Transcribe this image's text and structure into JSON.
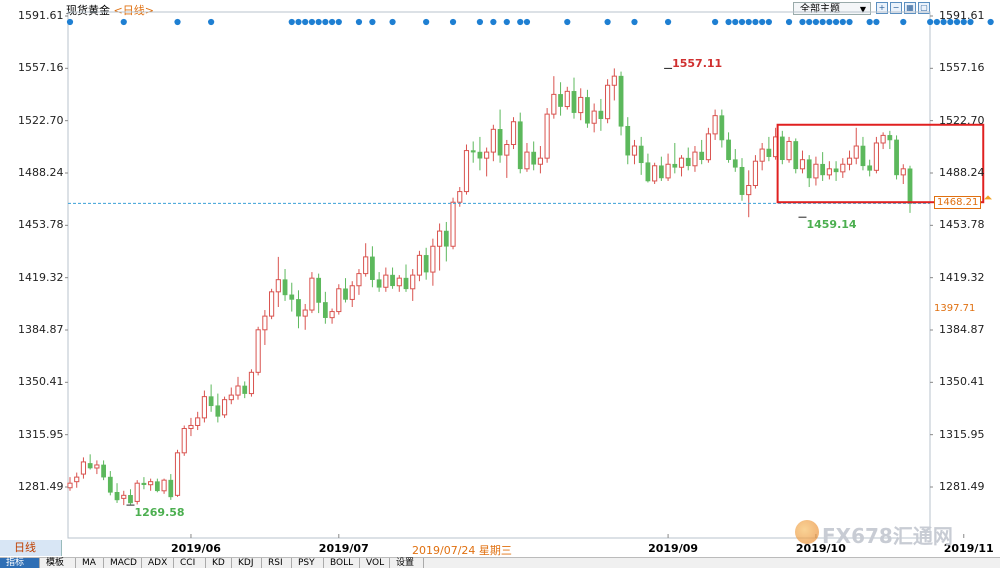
{
  "header": {
    "instrument": "现货黄金",
    "timeframe": "<日线>",
    "theme_label": "全部主题",
    "tool_icons": [
      "zoom-in-icon",
      "zoom-out-icon",
      "grid-icon",
      "window-icon"
    ]
  },
  "colors": {
    "up": "#d9534f",
    "down": "#5cb85c",
    "dot": "#1e7fd2",
    "hline": "#3aa0d8",
    "box": "#e02020",
    "hi_label": "#d03030",
    "lo_label": "#4caf50"
  },
  "bottom": {
    "period_tab": "日线",
    "hover_date": "2019/07/24 星期三",
    "indicator_tabs": [
      "指标",
      "模板",
      "MA",
      "MACD",
      "ADX",
      "CCI",
      "KD",
      "KDJ",
      "RSI",
      "PSY",
      "BOLL",
      "VOL",
      "设置"
    ],
    "active_tab": 0
  },
  "watermark": "FX678汇通网",
  "chart_data": {
    "type": "candlestick",
    "title": "",
    "xlabel": "",
    "ylabel": "",
    "ylim": [
      1260,
      1595
    ],
    "yticks": [
      "1591.61",
      "1557.16",
      "1522.70",
      "1488.24",
      "1453.78",
      "1419.32",
      "1384.87",
      "1350.41",
      "1315.95",
      "1281.49"
    ],
    "xticks": [
      "2019/06",
      "2019/07",
      "2019/09",
      "2019/10",
      "2019/11"
    ],
    "xtick_index": [
      18,
      40,
      89,
      111,
      133
    ],
    "right_price_labels": [
      {
        "text": "1468.21",
        "value": 1468.21,
        "highlight": true
      },
      {
        "text": "1397.71",
        "value": 1397.71,
        "highlight": false
      }
    ],
    "annotations": [
      {
        "text": "1557.11",
        "index": 89,
        "value": 1557.11,
        "kind": "high"
      },
      {
        "text": "1459.14",
        "index": 109,
        "value": 1459.14,
        "kind": "low"
      },
      {
        "text": "1269.58",
        "index": 9,
        "value": 1269.58,
        "kind": "low"
      }
    ],
    "hline": 1468.21,
    "box": {
      "from_index": 106,
      "to_index": 135,
      "low": 1469,
      "high": 1520
    },
    "signal_dot_index": [
      0,
      8,
      16,
      21,
      33,
      34,
      35,
      36,
      37,
      38,
      39,
      40,
      43,
      45,
      48,
      53,
      57,
      61,
      63,
      65,
      67,
      68,
      74,
      80,
      84,
      89,
      96,
      98,
      99,
      100,
      101,
      102,
      103,
      104,
      107,
      109,
      110,
      111,
      112,
      113,
      114,
      115,
      116,
      119,
      120,
      124,
      128,
      129,
      130,
      131,
      132,
      133,
      134,
      137,
      140,
      142
    ],
    "candles": [
      {
        "o": 1281,
        "h": 1288,
        "l": 1279,
        "c": 1284
      },
      {
        "o": 1285,
        "h": 1291,
        "l": 1281,
        "c": 1288
      },
      {
        "o": 1290,
        "h": 1301,
        "l": 1287,
        "c": 1298
      },
      {
        "o": 1297,
        "h": 1303,
        "l": 1293,
        "c": 1294
      },
      {
        "o": 1294,
        "h": 1299,
        "l": 1290,
        "c": 1296
      },
      {
        "o": 1296,
        "h": 1299,
        "l": 1286,
        "c": 1288
      },
      {
        "o": 1288,
        "h": 1292,
        "l": 1276,
        "c": 1278
      },
      {
        "o": 1278,
        "h": 1284,
        "l": 1271,
        "c": 1273
      },
      {
        "o": 1274,
        "h": 1279,
        "l": 1269.58,
        "c": 1276
      },
      {
        "o": 1276,
        "h": 1280,
        "l": 1270,
        "c": 1271
      },
      {
        "o": 1272,
        "h": 1286,
        "l": 1270,
        "c": 1284
      },
      {
        "o": 1284,
        "h": 1288,
        "l": 1280,
        "c": 1283
      },
      {
        "o": 1283,
        "h": 1287,
        "l": 1279,
        "c": 1285
      },
      {
        "o": 1285,
        "h": 1287,
        "l": 1278,
        "c": 1279
      },
      {
        "o": 1279,
        "h": 1287,
        "l": 1277,
        "c": 1286
      },
      {
        "o": 1286,
        "h": 1290,
        "l": 1273,
        "c": 1275
      },
      {
        "o": 1276,
        "h": 1306,
        "l": 1275,
        "c": 1304
      },
      {
        "o": 1304,
        "h": 1322,
        "l": 1302,
        "c": 1320
      },
      {
        "o": 1320,
        "h": 1327,
        "l": 1315,
        "c": 1322
      },
      {
        "o": 1322,
        "h": 1331,
        "l": 1319,
        "c": 1327
      },
      {
        "o": 1327,
        "h": 1345,
        "l": 1324,
        "c": 1341
      },
      {
        "o": 1341,
        "h": 1349,
        "l": 1331,
        "c": 1335
      },
      {
        "o": 1335,
        "h": 1343,
        "l": 1324,
        "c": 1328
      },
      {
        "o": 1329,
        "h": 1341,
        "l": 1327,
        "c": 1339
      },
      {
        "o": 1339,
        "h": 1347,
        "l": 1336,
        "c": 1342
      },
      {
        "o": 1342,
        "h": 1354,
        "l": 1339,
        "c": 1348
      },
      {
        "o": 1348,
        "h": 1351,
        "l": 1340,
        "c": 1343
      },
      {
        "o": 1343,
        "h": 1359,
        "l": 1341,
        "c": 1357
      },
      {
        "o": 1357,
        "h": 1387,
        "l": 1355,
        "c": 1385
      },
      {
        "o": 1385,
        "h": 1398,
        "l": 1375,
        "c": 1394
      },
      {
        "o": 1394,
        "h": 1412,
        "l": 1392,
        "c": 1410
      },
      {
        "o": 1410,
        "h": 1433,
        "l": 1400,
        "c": 1418
      },
      {
        "o": 1418,
        "h": 1425,
        "l": 1404,
        "c": 1408
      },
      {
        "o": 1408,
        "h": 1416,
        "l": 1397,
        "c": 1405
      },
      {
        "o": 1405,
        "h": 1411,
        "l": 1386,
        "c": 1394
      },
      {
        "o": 1394,
        "h": 1402,
        "l": 1385,
        "c": 1398
      },
      {
        "o": 1398,
        "h": 1423,
        "l": 1396,
        "c": 1419
      },
      {
        "o": 1419,
        "h": 1422,
        "l": 1396,
        "c": 1403
      },
      {
        "o": 1403,
        "h": 1410,
        "l": 1389,
        "c": 1393
      },
      {
        "o": 1393,
        "h": 1399,
        "l": 1389,
        "c": 1397
      },
      {
        "o": 1397,
        "h": 1415,
        "l": 1395,
        "c": 1412
      },
      {
        "o": 1412,
        "h": 1419,
        "l": 1403,
        "c": 1405
      },
      {
        "o": 1405,
        "h": 1417,
        "l": 1400,
        "c": 1414
      },
      {
        "o": 1414,
        "h": 1425,
        "l": 1408,
        "c": 1422
      },
      {
        "o": 1422,
        "h": 1442,
        "l": 1420,
        "c": 1433
      },
      {
        "o": 1433,
        "h": 1440,
        "l": 1413,
        "c": 1418
      },
      {
        "o": 1418,
        "h": 1423,
        "l": 1410,
        "c": 1413
      },
      {
        "o": 1413,
        "h": 1426,
        "l": 1410,
        "c": 1421
      },
      {
        "o": 1421,
        "h": 1426,
        "l": 1412,
        "c": 1414
      },
      {
        "o": 1414,
        "h": 1421,
        "l": 1410,
        "c": 1419
      },
      {
        "o": 1419,
        "h": 1428,
        "l": 1410,
        "c": 1412
      },
      {
        "o": 1412,
        "h": 1425,
        "l": 1404,
        "c": 1421
      },
      {
        "o": 1421,
        "h": 1437,
        "l": 1417,
        "c": 1434
      },
      {
        "o": 1434,
        "h": 1439,
        "l": 1418,
        "c": 1423
      },
      {
        "o": 1423,
        "h": 1445,
        "l": 1414,
        "c": 1440
      },
      {
        "o": 1440,
        "h": 1455,
        "l": 1424,
        "c": 1450
      },
      {
        "o": 1450,
        "h": 1456,
        "l": 1430,
        "c": 1440
      },
      {
        "o": 1440,
        "h": 1472,
        "l": 1438,
        "c": 1469
      },
      {
        "o": 1469,
        "h": 1479,
        "l": 1466,
        "c": 1476
      },
      {
        "o": 1476,
        "h": 1507,
        "l": 1474,
        "c": 1503
      },
      {
        "o": 1503,
        "h": 1509,
        "l": 1495,
        "c": 1502
      },
      {
        "o": 1502,
        "h": 1512,
        "l": 1490,
        "c": 1498
      },
      {
        "o": 1498,
        "h": 1505,
        "l": 1486,
        "c": 1502
      },
      {
        "o": 1502,
        "h": 1520,
        "l": 1496,
        "c": 1517
      },
      {
        "o": 1517,
        "h": 1530,
        "l": 1495,
        "c": 1500
      },
      {
        "o": 1500,
        "h": 1510,
        "l": 1485,
        "c": 1507
      },
      {
        "o": 1507,
        "h": 1525,
        "l": 1504,
        "c": 1522
      },
      {
        "o": 1522,
        "h": 1528,
        "l": 1488,
        "c": 1491
      },
      {
        "o": 1491,
        "h": 1508,
        "l": 1489,
        "c": 1502
      },
      {
        "o": 1502,
        "h": 1509,
        "l": 1490,
        "c": 1494
      },
      {
        "o": 1494,
        "h": 1506,
        "l": 1488,
        "c": 1498
      },
      {
        "o": 1498,
        "h": 1531,
        "l": 1495,
        "c": 1527
      },
      {
        "o": 1527,
        "h": 1552,
        "l": 1524,
        "c": 1540
      },
      {
        "o": 1540,
        "h": 1548,
        "l": 1526,
        "c": 1532
      },
      {
        "o": 1532,
        "h": 1545,
        "l": 1530,
        "c": 1542
      },
      {
        "o": 1542,
        "h": 1551,
        "l": 1524,
        "c": 1528
      },
      {
        "o": 1528,
        "h": 1544,
        "l": 1523,
        "c": 1538
      },
      {
        "o": 1538,
        "h": 1543,
        "l": 1518,
        "c": 1521
      },
      {
        "o": 1521,
        "h": 1534,
        "l": 1515,
        "c": 1529
      },
      {
        "o": 1529,
        "h": 1537,
        "l": 1516,
        "c": 1524
      },
      {
        "o": 1524,
        "h": 1550,
        "l": 1521,
        "c": 1546
      },
      {
        "o": 1546,
        "h": 1557.11,
        "l": 1536,
        "c": 1552
      },
      {
        "o": 1552,
        "h": 1555,
        "l": 1513,
        "c": 1519
      },
      {
        "o": 1519,
        "h": 1525,
        "l": 1494,
        "c": 1500
      },
      {
        "o": 1500,
        "h": 1510,
        "l": 1494,
        "c": 1506
      },
      {
        "o": 1506,
        "h": 1512,
        "l": 1487,
        "c": 1495
      },
      {
        "o": 1495,
        "h": 1501,
        "l": 1482,
        "c": 1483
      },
      {
        "o": 1483,
        "h": 1495,
        "l": 1481,
        "c": 1493
      },
      {
        "o": 1493,
        "h": 1499,
        "l": 1483,
        "c": 1485
      },
      {
        "o": 1485,
        "h": 1501,
        "l": 1483,
        "c": 1494
      },
      {
        "o": 1494,
        "h": 1508,
        "l": 1488,
        "c": 1492
      },
      {
        "o": 1492,
        "h": 1500,
        "l": 1486,
        "c": 1498
      },
      {
        "o": 1498,
        "h": 1505,
        "l": 1490,
        "c": 1493
      },
      {
        "o": 1493,
        "h": 1506,
        "l": 1489,
        "c": 1502
      },
      {
        "o": 1502,
        "h": 1510,
        "l": 1494,
        "c": 1497
      },
      {
        "o": 1497,
        "h": 1518,
        "l": 1495,
        "c": 1514
      },
      {
        "o": 1514,
        "h": 1530,
        "l": 1510,
        "c": 1526
      },
      {
        "o": 1526,
        "h": 1530,
        "l": 1505,
        "c": 1510
      },
      {
        "o": 1510,
        "h": 1515,
        "l": 1495,
        "c": 1497
      },
      {
        "o": 1497,
        "h": 1504,
        "l": 1489,
        "c": 1492
      },
      {
        "o": 1492,
        "h": 1498,
        "l": 1470,
        "c": 1474
      },
      {
        "o": 1474,
        "h": 1490,
        "l": 1459.14,
        "c": 1480
      },
      {
        "o": 1480,
        "h": 1500,
        "l": 1478,
        "c": 1496
      },
      {
        "o": 1496,
        "h": 1508,
        "l": 1490,
        "c": 1504
      },
      {
        "o": 1504,
        "h": 1512,
        "l": 1496,
        "c": 1499
      },
      {
        "o": 1499,
        "h": 1518,
        "l": 1497,
        "c": 1512
      },
      {
        "o": 1512,
        "h": 1516,
        "l": 1494,
        "c": 1497
      },
      {
        "o": 1497,
        "h": 1512,
        "l": 1495,
        "c": 1509
      },
      {
        "o": 1509,
        "h": 1511,
        "l": 1488,
        "c": 1491
      },
      {
        "o": 1491,
        "h": 1503,
        "l": 1488,
        "c": 1497
      },
      {
        "o": 1497,
        "h": 1500,
        "l": 1479,
        "c": 1485
      },
      {
        "o": 1485,
        "h": 1499,
        "l": 1480,
        "c": 1494
      },
      {
        "o": 1494,
        "h": 1502,
        "l": 1483,
        "c": 1487
      },
      {
        "o": 1487,
        "h": 1496,
        "l": 1484,
        "c": 1491
      },
      {
        "o": 1491,
        "h": 1496,
        "l": 1483,
        "c": 1489
      },
      {
        "o": 1489,
        "h": 1498,
        "l": 1485,
        "c": 1494
      },
      {
        "o": 1494,
        "h": 1503,
        "l": 1490,
        "c": 1498
      },
      {
        "o": 1498,
        "h": 1518,
        "l": 1494,
        "c": 1506
      },
      {
        "o": 1506,
        "h": 1512,
        "l": 1490,
        "c": 1493
      },
      {
        "o": 1493,
        "h": 1497,
        "l": 1486,
        "c": 1490
      },
      {
        "o": 1490,
        "h": 1512,
        "l": 1488,
        "c": 1508
      },
      {
        "o": 1508,
        "h": 1515,
        "l": 1504,
        "c": 1513
      },
      {
        "o": 1513,
        "h": 1516,
        "l": 1504,
        "c": 1510
      },
      {
        "o": 1510,
        "h": 1513,
        "l": 1484,
        "c": 1487
      },
      {
        "o": 1487,
        "h": 1494,
        "l": 1481,
        "c": 1491
      },
      {
        "o": 1491,
        "h": 1493,
        "l": 1462,
        "c": 1468.21
      }
    ]
  }
}
